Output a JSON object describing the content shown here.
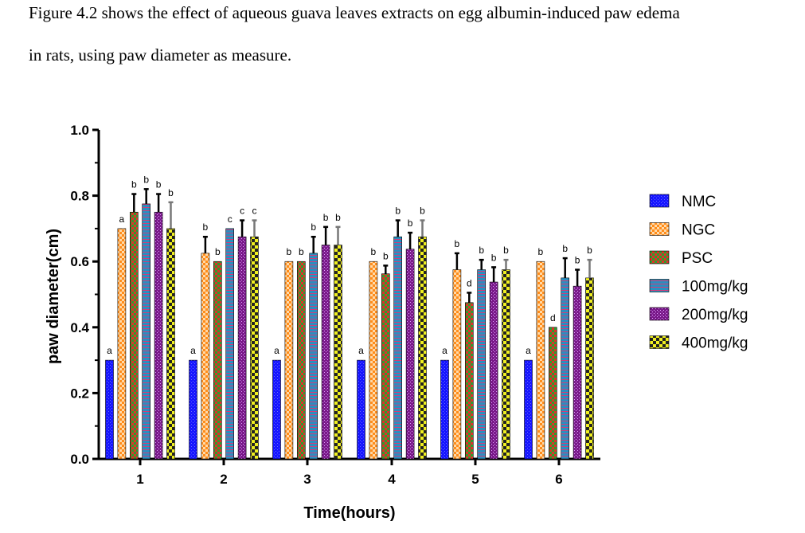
{
  "caption": {
    "line1": "Figure 4.2 shows the effect of aqueous guava leaves extracts on egg albumin-induced paw edema",
    "line2": "in rats, using paw diameter as measure."
  },
  "chart_data": {
    "type": "bar",
    "title": "",
    "xlabel": "Time(hours)",
    "ylabel": "paw diameter(cm)",
    "ylim": [
      0.0,
      1.0
    ],
    "yticks": [
      "0.0",
      "0.2",
      "0.4",
      "0.6",
      "0.8",
      "1.0"
    ],
    "categories": [
      "1",
      "2",
      "3",
      "4",
      "5",
      "6"
    ],
    "legend_position": "right",
    "series": [
      {
        "name": "NMC",
        "color": "#1a1aff",
        "pattern": "fine-dots-blue",
        "values": [
          0.3,
          0.3,
          0.3,
          0.3,
          0.3,
          0.3
        ],
        "errors": [
          0,
          0,
          0,
          0,
          0,
          0
        ],
        "labels": [
          "a",
          "a",
          "a",
          "a",
          "a",
          "a"
        ]
      },
      {
        "name": "NGC",
        "color": "#ff9a1a",
        "pattern": "orange-checker",
        "values": [
          0.7,
          0.625,
          0.6,
          0.6,
          0.575,
          0.6
        ],
        "errors": [
          0,
          0.05,
          0,
          0,
          0.05,
          0
        ],
        "labels": [
          "a",
          "b",
          "b",
          "b",
          "b",
          "b"
        ]
      },
      {
        "name": "PSC",
        "color": "#2e9e2e",
        "pattern": "red-green-checker",
        "values": [
          0.75,
          0.6,
          0.6,
          0.5625,
          0.475,
          0.4
        ],
        "errors": [
          0.055,
          0,
          0,
          0.025,
          0.03,
          0
        ],
        "labels": [
          "b",
          "b",
          "b",
          "b",
          "d",
          "d"
        ]
      },
      {
        "name": "100mg/kg",
        "color": "#2a8fc0",
        "pattern": "teal-stripes",
        "values": [
          0.775,
          0.7,
          0.625,
          0.675,
          0.575,
          0.55
        ],
        "errors": [
          0.045,
          0,
          0.05,
          0.05,
          0.03,
          0.06
        ],
        "labels": [
          "b",
          "c",
          "b",
          "b",
          "b",
          "b"
        ]
      },
      {
        "name": "200mg/kg",
        "color": "#8a1a9a",
        "pattern": "purple-dots",
        "values": [
          0.75,
          0.675,
          0.65,
          0.6375,
          0.5375,
          0.525
        ],
        "errors": [
          0.055,
          0.05,
          0.055,
          0.05,
          0.045,
          0.05
        ],
        "labels": [
          "b",
          "c",
          "b",
          "b",
          "b",
          "b"
        ]
      },
      {
        "name": "400mg/kg",
        "color": "#e8e800",
        "pattern": "yellow-black-checker",
        "values": [
          0.7,
          0.675,
          0.65,
          0.675,
          0.575,
          0.55
        ],
        "errors": [
          0.08,
          0.05,
          0.055,
          0.05,
          0.03,
          0.055
        ],
        "labels": [
          "b",
          "c",
          "b",
          "b",
          "b",
          "b"
        ]
      }
    ]
  }
}
